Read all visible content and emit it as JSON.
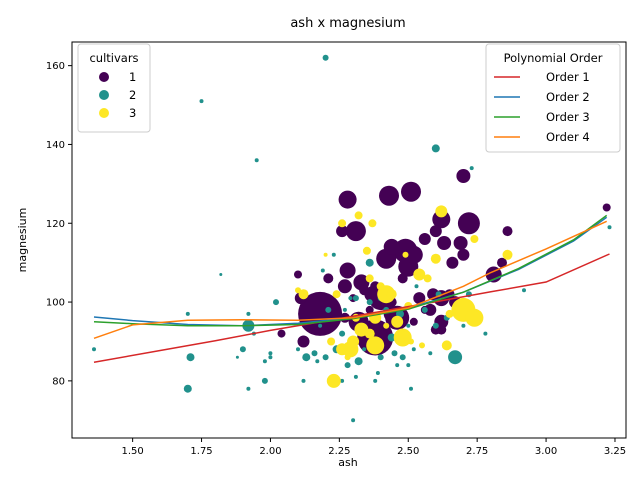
{
  "chart_data": {
    "type": "scatter",
    "title": "ash x magnesium",
    "xlabel": "ash",
    "ylabel": "magnesium",
    "xlim": [
      1.28,
      3.29
    ],
    "ylim": [
      65.5,
      166
    ],
    "xticks": [
      "1.50",
      "1.75",
      "2.00",
      "2.25",
      "2.50",
      "2.75",
      "3.00",
      "3.25"
    ],
    "xtick_values": [
      1.5,
      1.75,
      2.0,
      2.25,
      2.5,
      2.75,
      3.0,
      3.25
    ],
    "yticks": [
      "80",
      "100",
      "120",
      "140",
      "160"
    ],
    "ytick_values": [
      80,
      100,
      120,
      140,
      160
    ],
    "grid": false,
    "hue_legend": {
      "title": "cultivars",
      "placement": "top-left",
      "entries": [
        {
          "label": "1",
          "color": "#440154"
        },
        {
          "label": "2",
          "color": "#21918c"
        },
        {
          "label": "3",
          "color": "#fde725"
        }
      ]
    },
    "fit_legend": {
      "title": "Polynomial Order",
      "placement": "top-right",
      "entries": [
        {
          "label": "Order 1",
          "color": "#d62728"
        },
        {
          "label": "Order 2",
          "color": "#1f77b4"
        },
        {
          "label": "Order 3",
          "color": "#2ca02c"
        },
        {
          "label": "Order 4",
          "color": "#ff7f0e"
        }
      ]
    },
    "fit_curves": [
      {
        "name": "Order 1",
        "color": "#d62728",
        "points": [
          [
            1.36,
            84.7
          ],
          [
            1.6,
            87.7
          ],
          [
            1.8,
            90.2
          ],
          [
            2.0,
            92.8
          ],
          [
            2.2,
            95.2
          ],
          [
            2.4,
            97.6
          ],
          [
            2.6,
            100.1
          ],
          [
            2.8,
            102.6
          ],
          [
            3.0,
            105.1
          ],
          [
            3.23,
            112.2
          ]
        ]
      },
      {
        "name": "Order 2",
        "color": "#1f77b4",
        "points": [
          [
            1.36,
            96.2
          ],
          [
            1.5,
            95.3
          ],
          [
            1.7,
            94.3
          ],
          [
            1.9,
            94.0
          ],
          [
            2.1,
            94.6
          ],
          [
            2.3,
            96.0
          ],
          [
            2.5,
            98.5
          ],
          [
            2.7,
            102.5
          ],
          [
            2.9,
            108.3
          ],
          [
            3.1,
            115.5
          ],
          [
            3.22,
            121.5
          ]
        ]
      },
      {
        "name": "Order 3",
        "color": "#2ca02c",
        "points": [
          [
            1.36,
            95.0
          ],
          [
            1.5,
            94.5
          ],
          [
            1.7,
            94.0
          ],
          [
            1.9,
            94.0
          ],
          [
            2.1,
            94.3
          ],
          [
            2.3,
            95.8
          ],
          [
            2.5,
            98.2
          ],
          [
            2.7,
            102.5
          ],
          [
            2.9,
            108.5
          ],
          [
            3.1,
            115.8
          ],
          [
            3.22,
            122.0
          ]
        ]
      },
      {
        "name": "Order 4",
        "color": "#ff7f0e",
        "points": [
          [
            1.36,
            90.8
          ],
          [
            1.5,
            94.2
          ],
          [
            1.7,
            95.4
          ],
          [
            1.9,
            95.5
          ],
          [
            2.1,
            95.4
          ],
          [
            2.3,
            96.0
          ],
          [
            2.5,
            98.5
          ],
          [
            2.7,
            104.0
          ],
          [
            2.8,
            107.5
          ],
          [
            3.0,
            113.5
          ],
          [
            3.22,
            120.5
          ]
        ]
      }
    ],
    "series": [
      {
        "name": "1",
        "color": "#440154",
        "points": [
          [
            2.18,
            97,
            22
          ],
          [
            2.38,
            91,
            18
          ],
          [
            2.43,
            127,
            10
          ],
          [
            2.51,
            128,
            10
          ],
          [
            2.49,
            113,
            12
          ],
          [
            2.4,
            101,
            12
          ],
          [
            2.32,
            95,
            10
          ],
          [
            2.42,
            111,
            10
          ],
          [
            2.72,
            120,
            11
          ],
          [
            2.62,
            121,
            9
          ],
          [
            2.28,
            126,
            9
          ],
          [
            2.31,
            118,
            10
          ],
          [
            2.28,
            108,
            8
          ],
          [
            2.33,
            105,
            8
          ],
          [
            2.37,
            102,
            8
          ],
          [
            2.46,
            96,
            12
          ],
          [
            2.5,
            109,
            10
          ],
          [
            2.52,
            112,
            9
          ],
          [
            2.44,
            114,
            8
          ],
          [
            2.56,
            116,
            6
          ],
          [
            2.6,
            118,
            6
          ],
          [
            2.63,
            115,
            7
          ],
          [
            2.69,
            115,
            7
          ],
          [
            2.7,
            112,
            6
          ],
          [
            2.7,
            132,
            7
          ],
          [
            2.86,
            118,
            5
          ],
          [
            2.81,
            107,
            8
          ],
          [
            2.62,
            101,
            8
          ],
          [
            2.58,
            98,
            6
          ],
          [
            2.62,
            95,
            7
          ],
          [
            2.66,
            110,
            6
          ],
          [
            2.54,
            101,
            6
          ],
          [
            2.44,
            97,
            8
          ],
          [
            2.38,
            104,
            5
          ],
          [
            2.26,
            118,
            6
          ],
          [
            2.11,
            101,
            6
          ],
          [
            2.1,
            107,
            4
          ],
          [
            2.12,
            90,
            6
          ],
          [
            2.04,
            92,
            4
          ],
          [
            2.27,
            104,
            7
          ],
          [
            2.21,
            106,
            5
          ],
          [
            2.59,
            102,
            6
          ],
          [
            2.65,
            102,
            5
          ],
          [
            2.6,
            93,
            5
          ],
          [
            2.71,
            98,
            6
          ],
          [
            2.62,
            93,
            5
          ],
          [
            2.67,
            100,
            6
          ],
          [
            3.22,
            124,
            4
          ],
          [
            2.84,
            110,
            5
          ],
          [
            2.52,
            95,
            4
          ],
          [
            2.4,
            92,
            6
          ],
          [
            2.36,
            98,
            4
          ],
          [
            2.44,
            100,
            5
          ],
          [
            2.34,
            103,
            5
          ],
          [
            2.22,
            95,
            5
          ],
          [
            2.27,
            96,
            5
          ],
          [
            2.3,
            101,
            4
          ],
          [
            2.48,
            106,
            5
          ],
          [
            2.56,
            98,
            4
          ]
        ]
      },
      {
        "name": "2",
        "color": "#21918c",
        "points": [
          [
            1.36,
            88,
            2
          ],
          [
            1.7,
            78,
            4
          ],
          [
            1.71,
            86,
            4
          ],
          [
            1.7,
            97,
            2
          ],
          [
            1.75,
            151,
            2
          ],
          [
            1.82,
            107,
            1.5
          ],
          [
            1.92,
            94,
            6
          ],
          [
            1.92,
            78,
            2
          ],
          [
            1.92,
            97,
            2
          ],
          [
            1.94,
            92,
            2
          ],
          [
            1.95,
            136,
            2
          ],
          [
            1.98,
            80,
            3
          ],
          [
            1.98,
            85,
            2
          ],
          [
            2.0,
            86,
            2
          ],
          [
            2.0,
            87,
            2
          ],
          [
            2.02,
            100,
            3
          ],
          [
            1.88,
            86,
            1.5
          ],
          [
            1.9,
            88,
            3
          ],
          [
            2.1,
            88,
            2
          ],
          [
            2.12,
            80,
            2
          ],
          [
            2.13,
            86,
            4
          ],
          [
            2.16,
            87,
            3
          ],
          [
            2.17,
            85,
            2
          ],
          [
            2.19,
            108,
            2
          ],
          [
            2.2,
            162,
            3
          ],
          [
            2.2,
            86,
            3
          ],
          [
            2.21,
            98,
            3
          ],
          [
            2.23,
            112,
            2
          ],
          [
            2.24,
            88,
            4
          ],
          [
            2.26,
            80,
            2
          ],
          [
            2.27,
            98,
            2
          ],
          [
            2.28,
            84,
            3
          ],
          [
            2.29,
            101,
            2
          ],
          [
            2.3,
            70,
            2
          ],
          [
            2.31,
            81,
            2
          ],
          [
            2.31,
            101,
            3
          ],
          [
            2.32,
            85,
            4
          ],
          [
            2.34,
            88,
            2
          ],
          [
            2.36,
            100,
            3
          ],
          [
            2.36,
            110,
            4
          ],
          [
            2.38,
            80,
            2
          ],
          [
            2.39,
            82,
            2
          ],
          [
            2.4,
            101,
            3
          ],
          [
            2.4,
            86,
            3
          ],
          [
            2.42,
            98,
            3
          ],
          [
            2.44,
            91,
            4
          ],
          [
            2.45,
            87,
            3
          ],
          [
            2.46,
            84,
            2
          ],
          [
            2.47,
            97,
            4
          ],
          [
            2.48,
            86,
            3
          ],
          [
            2.5,
            84,
            2
          ],
          [
            2.5,
            94,
            2
          ],
          [
            2.51,
            78,
            2
          ],
          [
            2.52,
            88,
            2
          ],
          [
            2.53,
            104,
            2
          ],
          [
            2.56,
            98,
            3
          ],
          [
            2.58,
            87,
            2
          ],
          [
            2.6,
            94,
            3
          ],
          [
            2.6,
            139,
            4
          ],
          [
            2.61,
            102,
            3
          ],
          [
            2.64,
            96,
            3
          ],
          [
            2.67,
            86,
            7
          ],
          [
            2.69,
            96,
            3
          ],
          [
            2.7,
            94,
            2
          ],
          [
            2.72,
            102,
            3
          ],
          [
            2.73,
            134,
            2
          ],
          [
            2.78,
            92,
            2
          ],
          [
            2.92,
            103,
            2
          ],
          [
            3.23,
            119,
            2
          ],
          [
            2.26,
            92,
            3
          ],
          [
            2.36,
            92,
            3
          ],
          [
            2.18,
            94,
            2
          ]
        ]
      },
      {
        "name": "3",
        "color": "#fde725",
        "points": [
          [
            2.7,
            98,
            12
          ],
          [
            2.74,
            96,
            9
          ],
          [
            2.48,
            91,
            9
          ],
          [
            2.38,
            89,
            9
          ],
          [
            2.42,
            102,
            9
          ],
          [
            2.33,
            93,
            7
          ],
          [
            2.36,
            92,
            5
          ],
          [
            2.23,
            80,
            7
          ],
          [
            2.26,
            88,
            6
          ],
          [
            2.29,
            88,
            8
          ],
          [
            2.3,
            90,
            6
          ],
          [
            2.31,
            96,
            4
          ],
          [
            2.32,
            122,
            4
          ],
          [
            2.35,
            113,
            4
          ],
          [
            2.36,
            106,
            4
          ],
          [
            2.37,
            120,
            4
          ],
          [
            2.4,
            104,
            4
          ],
          [
            2.44,
            102,
            5
          ],
          [
            2.46,
            95,
            6
          ],
          [
            2.49,
            112,
            3
          ],
          [
            2.5,
            99,
            4
          ],
          [
            2.51,
            90,
            3
          ],
          [
            2.54,
            107,
            6
          ],
          [
            2.55,
            89,
            3
          ],
          [
            2.57,
            106,
            4
          ],
          [
            2.6,
            111,
            5
          ],
          [
            2.62,
            123,
            6
          ],
          [
            2.64,
            89,
            5
          ],
          [
            2.65,
            97,
            4
          ],
          [
            2.74,
            116,
            4
          ],
          [
            2.86,
            112,
            5
          ],
          [
            2.2,
            112,
            2
          ],
          [
            2.24,
            102,
            4
          ],
          [
            2.26,
            120,
            4
          ],
          [
            2.22,
            90,
            4
          ],
          [
            2.12,
            102,
            5
          ],
          [
            2.1,
            103,
            3
          ],
          [
            2.38,
            96,
            6
          ],
          [
            2.42,
            94,
            3
          ],
          [
            2.28,
            86,
            3
          ]
        ]
      }
    ]
  }
}
